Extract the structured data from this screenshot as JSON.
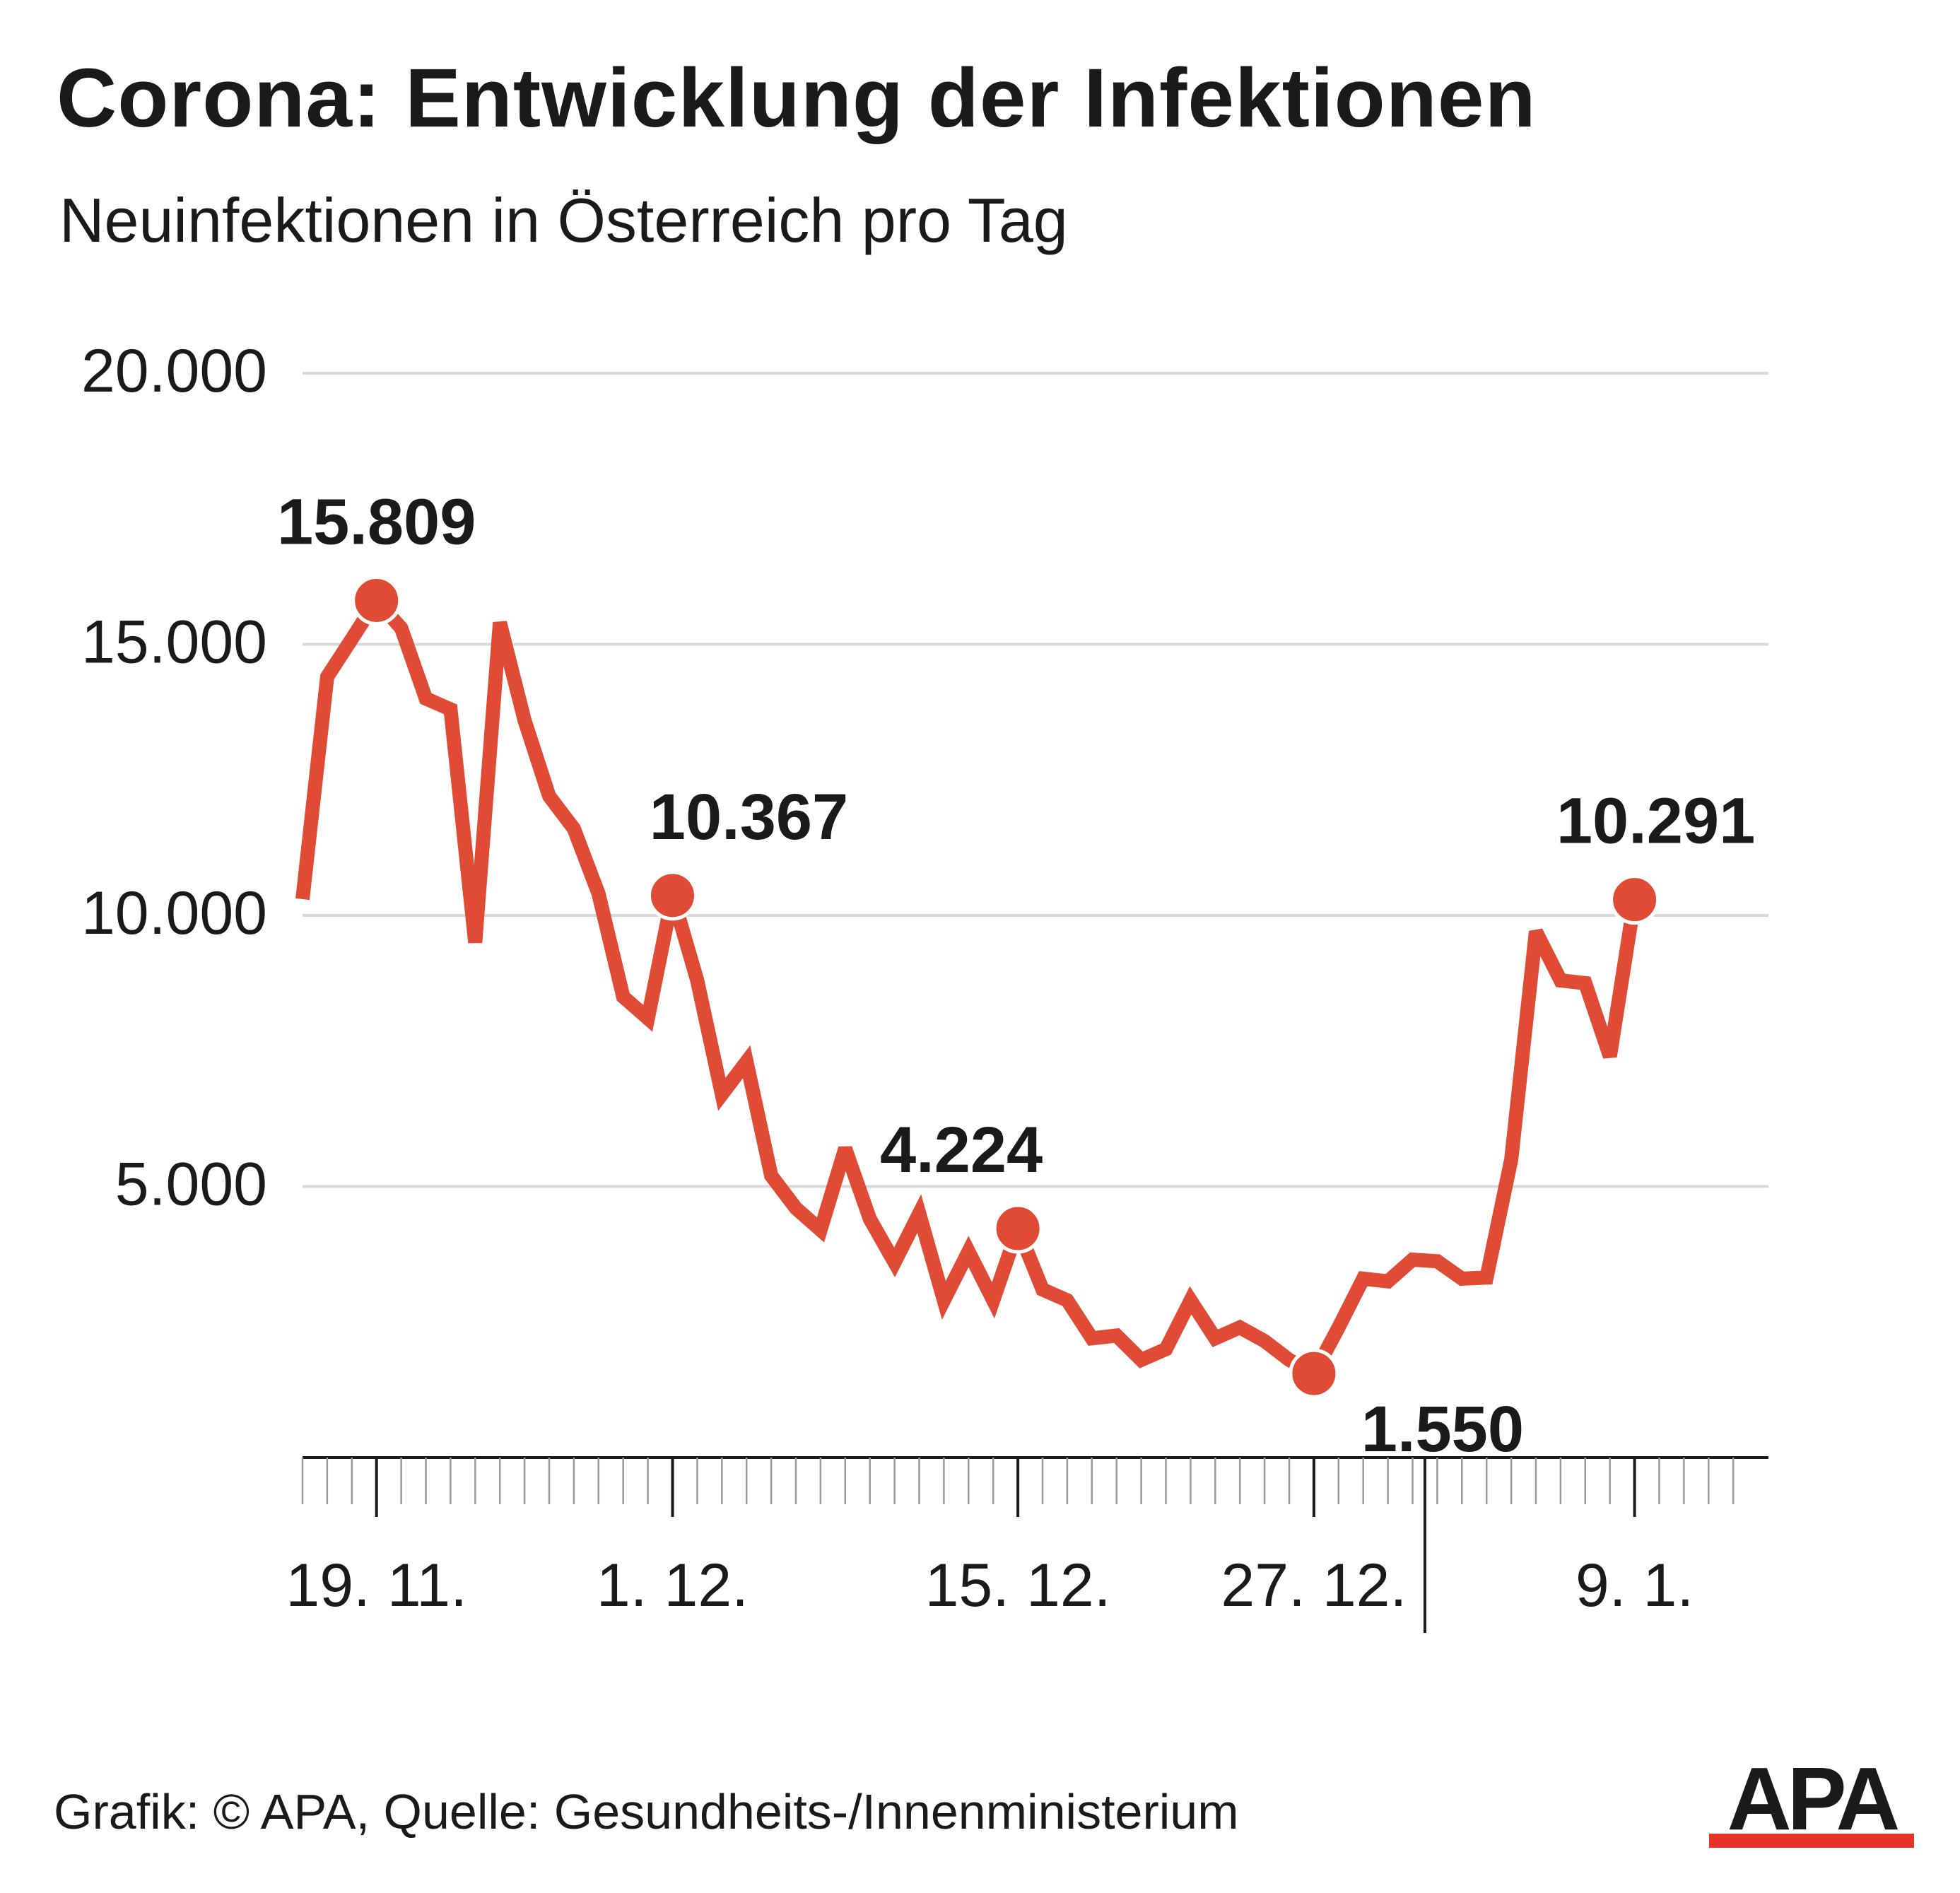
{
  "title": "Corona: Entwicklung der Infektionen",
  "subtitle": "Neuinfektionen in Österreich pro Tag",
  "source": "Grafik: © APA, Quelle: Gesundheits-/Innenministerium",
  "logo_text": "APA",
  "colors": {
    "line": "#e04b35",
    "grid": "#d9d9d9",
    "text": "#1a1a1a",
    "logo_black": "#1a1a1a",
    "logo_red": "#e5332a"
  },
  "chart_data": {
    "type": "line",
    "title": "Corona: Entwicklung der Infektionen",
    "subtitle": "Neuinfektionen in Österreich pro Tag",
    "xlabel": "",
    "ylabel": "",
    "ylim": [
      0,
      20000
    ],
    "yticks": [
      5000,
      10000,
      15000,
      20000
    ],
    "ytick_labels": [
      "5.000",
      "10.000",
      "15.000",
      "20.000"
    ],
    "grid": true,
    "legend": "none",
    "x": [
      "2021-11-16",
      "2021-11-17",
      "2021-11-18",
      "2021-11-19",
      "2021-11-20",
      "2021-11-21",
      "2021-11-22",
      "2021-11-23",
      "2021-11-24",
      "2021-11-25",
      "2021-11-26",
      "2021-11-27",
      "2021-11-28",
      "2021-11-29",
      "2021-11-30",
      "2021-12-01",
      "2021-12-02",
      "2021-12-03",
      "2021-12-04",
      "2021-12-05",
      "2021-12-06",
      "2021-12-07",
      "2021-12-08",
      "2021-12-09",
      "2021-12-10",
      "2021-12-11",
      "2021-12-12",
      "2021-12-13",
      "2021-12-14",
      "2021-12-15",
      "2021-12-16",
      "2021-12-17",
      "2021-12-18",
      "2021-12-19",
      "2021-12-20",
      "2021-12-21",
      "2021-12-22",
      "2021-12-23",
      "2021-12-24",
      "2021-12-25",
      "2021-12-26",
      "2021-12-27",
      "2021-12-28",
      "2021-12-29",
      "2021-12-30",
      "2021-12-31",
      "2022-01-01",
      "2022-01-02",
      "2022-01-03",
      "2022-01-04",
      "2022-01-05",
      "2022-01-06",
      "2022-01-07",
      "2022-01-08",
      "2022-01-09"
    ],
    "series": [
      {
        "values": [
          10300,
          14400,
          15100,
          15809,
          15300,
          14000,
          13800,
          9500,
          15400,
          13600,
          12200,
          11600,
          10400,
          8500,
          8100,
          10367,
          8800,
          6700,
          7300,
          5200,
          4600,
          4200,
          5700,
          4400,
          3600,
          4500,
          2900,
          3800,
          2900,
          4224,
          3100,
          2900,
          2200,
          2250,
          1800,
          2000,
          2900,
          2200,
          2400,
          2150,
          1800,
          1550,
          2400,
          3300,
          3250,
          3650,
          3620,
          3300,
          3320,
          5500,
          9700,
          8800,
          8750,
          7400,
          10291
        ]
      }
    ],
    "annotations": [
      {
        "date": "2021-11-19",
        "value": 15809,
        "label": "15.809"
      },
      {
        "date": "2021-12-01",
        "value": 10367,
        "label": "10.367"
      },
      {
        "date": "2021-12-15",
        "value": 4224,
        "label": "4.224"
      },
      {
        "date": "2021-12-27",
        "value": 1550,
        "label": "1.550"
      },
      {
        "date": "2022-01-09",
        "value": 10291,
        "label": "10.291"
      }
    ],
    "xticks": [
      {
        "date": "2021-11-19",
        "label": "19. 11."
      },
      {
        "date": "2021-12-01",
        "label": "1. 12."
      },
      {
        "date": "2021-12-15",
        "label": "15. 12."
      },
      {
        "date": "2021-12-27",
        "label": "27. 12."
      },
      {
        "date": "2022-01-09",
        "label": "9. 1."
      }
    ],
    "year_separator_date": "2022-01-01"
  }
}
